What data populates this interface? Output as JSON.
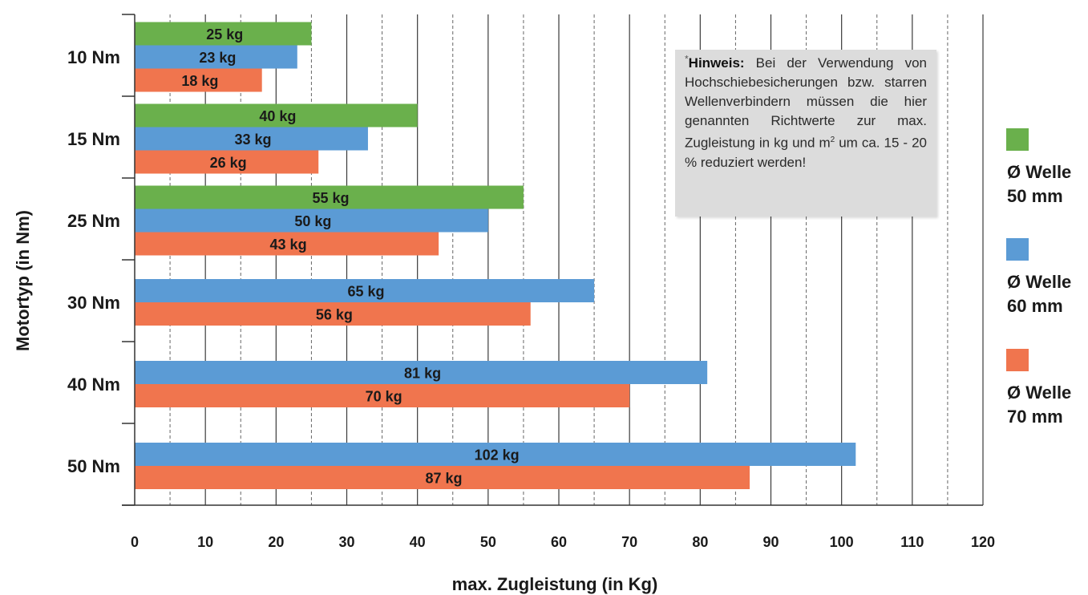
{
  "chart_data": {
    "type": "bar",
    "orientation": "horizontal",
    "ylabel": "Motortyp (in Nm)",
    "xlabel": "max. Zugleistung (in Kg)",
    "xlim": [
      0,
      120
    ],
    "xticks": [
      0,
      10,
      20,
      30,
      40,
      50,
      60,
      70,
      80,
      90,
      100,
      110,
      120
    ],
    "grid": "vertical",
    "legend_position": "right",
    "unit": "kg",
    "categories": [
      "10 Nm",
      "15 Nm",
      "25 Nm",
      "30 Nm",
      "40 Nm",
      "50 Nm"
    ],
    "series": [
      {
        "name": "Ø Welle 50 mm",
        "name_lines": [
          "Ø Welle",
          "50 mm"
        ],
        "color": "#6ab04c",
        "values": [
          25,
          40,
          55,
          null,
          null,
          null
        ]
      },
      {
        "name": "Ø Welle 60 mm",
        "name_lines": [
          "Ø Welle",
          "60 mm"
        ],
        "color": "#5b9bd5",
        "values": [
          23,
          33,
          50,
          65,
          81,
          102
        ]
      },
      {
        "name": "Ø Welle 70 mm",
        "name_lines": [
          "Ø Welle",
          "70 mm"
        ],
        "color": "#f0754e",
        "values": [
          18,
          26,
          43,
          56,
          70,
          87
        ]
      }
    ]
  },
  "note": {
    "star": "*",
    "heading": "Hinweis:",
    "text_before_sup": "Bei der Verwendung von Hochschiebesicherungen bzw. starren Wellenverbindern müssen die hier genannten Richtwerte zur max. Zugleistung in kg und m",
    "sup": "2",
    "text_after_sup": "um ca. 15 - 20 % reduziert werden!"
  }
}
